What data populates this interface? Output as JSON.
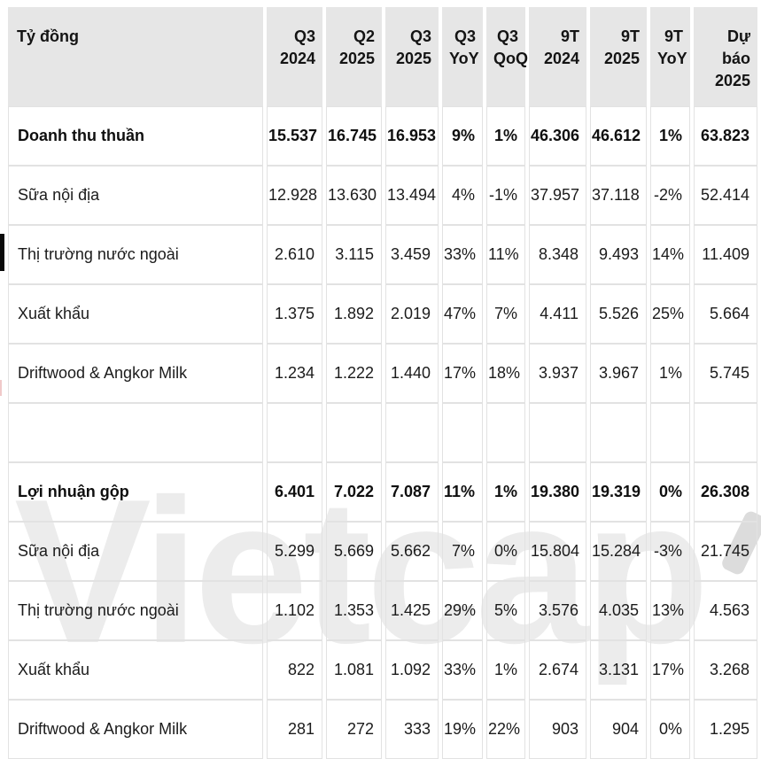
{
  "unit_label": "Tỷ đồng",
  "watermark": {
    "text": "Vietcap",
    "color": "#ececec",
    "tick_color": "#dcdcdc"
  },
  "colors": {
    "header_bg": "#e6e6e6",
    "cell_border": "#e2e2e2",
    "text": "#1b1b1b",
    "watermark": "#ececec"
  },
  "header": {
    "cols": [
      {
        "l1": "Tỷ đồng",
        "l2": ""
      },
      {
        "l1": "Q3",
        "l2": "2024"
      },
      {
        "l1": "Q2",
        "l2": "2025"
      },
      {
        "l1": "Q3",
        "l2": "2025"
      },
      {
        "l1": "Q3",
        "l2": "YoY"
      },
      {
        "l1": "Q3",
        "l2": "QoQ"
      },
      {
        "l1": "9T",
        "l2": "2024"
      },
      {
        "l1": "9T",
        "l2": "2025"
      },
      {
        "l1": "9T",
        "l2": "YoY"
      },
      {
        "l1": "Dự báo",
        "l2": "2025"
      }
    ]
  },
  "rows": [
    {
      "label": "Doanh thu thuần",
      "bold": true,
      "spacer": false,
      "cells": [
        "15.537",
        "16.745",
        "16.953",
        "9%",
        "1%",
        "46.306",
        "46.612",
        "1%",
        "63.823"
      ]
    },
    {
      "label": "Sữa nội địa",
      "bold": false,
      "spacer": false,
      "cells": [
        "12.928",
        "13.630",
        "13.494",
        "4%",
        "-1%",
        "37.957",
        "37.118",
        "-2%",
        "52.414"
      ]
    },
    {
      "label": "Thị trường nước ngoài",
      "bold": false,
      "spacer": false,
      "cells": [
        "2.610",
        "3.115",
        "3.459",
        "33%",
        "11%",
        "8.348",
        "9.493",
        "14%",
        "11.409"
      ]
    },
    {
      "label": "Xuất khẩu",
      "bold": false,
      "spacer": false,
      "cells": [
        "1.375",
        "1.892",
        "2.019",
        "47%",
        "7%",
        "4.411",
        "5.526",
        "25%",
        "5.664"
      ]
    },
    {
      "label": "Driftwood & Angkor Milk",
      "bold": false,
      "spacer": false,
      "cells": [
        "1.234",
        "1.222",
        "1.440",
        "17%",
        "18%",
        "3.937",
        "3.967",
        "1%",
        "5.745"
      ]
    },
    {
      "label": "",
      "bold": false,
      "spacer": true,
      "cells": [
        "",
        "",
        "",
        "",
        "",
        "",
        "",
        "",
        ""
      ]
    },
    {
      "label": "Lợi nhuận gộp",
      "bold": true,
      "spacer": false,
      "cells": [
        "6.401",
        "7.022",
        "7.087",
        "11%",
        "1%",
        "19.380",
        "19.319",
        "0%",
        "26.308"
      ]
    },
    {
      "label": "Sữa nội địa",
      "bold": false,
      "spacer": false,
      "cells": [
        "5.299",
        "5.669",
        "5.662",
        "7%",
        "0%",
        "15.804",
        "15.284",
        "-3%",
        "21.745"
      ]
    },
    {
      "label": "Thị trường nước ngoài",
      "bold": false,
      "spacer": false,
      "cells": [
        "1.102",
        "1.353",
        "1.425",
        "29%",
        "5%",
        "3.576",
        "4.035",
        "13%",
        "4.563"
      ]
    },
    {
      "label": "Xuất khẩu",
      "bold": false,
      "spacer": false,
      "cells": [
        "822",
        "1.081",
        "1.092",
        "33%",
        "1%",
        "2.674",
        "3.131",
        "17%",
        "3.268"
      ]
    },
    {
      "label": "Driftwood & Angkor Milk",
      "bold": false,
      "spacer": false,
      "cells": [
        "281",
        "272",
        "333",
        "19%",
        "22%",
        "903",
        "904",
        "0%",
        "1.295"
      ]
    }
  ],
  "chart_data": {
    "type": "table",
    "title": "Tỷ đồng",
    "columns": [
      "Tỷ đồng",
      "Q3 2024",
      "Q2 2025",
      "Q3 2025",
      "Q3 YoY",
      "Q3 QoQ",
      "9T 2024",
      "9T 2025",
      "9T YoY",
      "Dự báo 2025"
    ],
    "rows": [
      [
        "Doanh thu thuần",
        "15.537",
        "16.745",
        "16.953",
        "9%",
        "1%",
        "46.306",
        "46.612",
        "1%",
        "63.823"
      ],
      [
        "Sữa nội địa",
        "12.928",
        "13.630",
        "13.494",
        "4%",
        "-1%",
        "37.957",
        "37.118",
        "-2%",
        "52.414"
      ],
      [
        "Thị trường nước ngoài",
        "2.610",
        "3.115",
        "3.459",
        "33%",
        "11%",
        "8.348",
        "9.493",
        "14%",
        "11.409"
      ],
      [
        "Xuất khẩu",
        "1.375",
        "1.892",
        "2.019",
        "47%",
        "7%",
        "4.411",
        "5.526",
        "25%",
        "5.664"
      ],
      [
        "Driftwood & Angkor Milk",
        "1.234",
        "1.222",
        "1.440",
        "17%",
        "18%",
        "3.937",
        "3.967",
        "1%",
        "5.745"
      ],
      [
        "Lợi nhuận gộp",
        "6.401",
        "7.022",
        "7.087",
        "11%",
        "1%",
        "19.380",
        "19.319",
        "0%",
        "26.308"
      ],
      [
        "Sữa nội địa",
        "5.299",
        "5.669",
        "5.662",
        "7%",
        "0%",
        "15.804",
        "15.284",
        "-3%",
        "21.745"
      ],
      [
        "Thị trường nước ngoài",
        "1.102",
        "1.353",
        "1.425",
        "29%",
        "5%",
        "3.576",
        "4.035",
        "13%",
        "4.563"
      ],
      [
        "Xuất khẩu",
        "822",
        "1.081",
        "1.092",
        "33%",
        "1%",
        "2.674",
        "3.131",
        "17%",
        "3.268"
      ],
      [
        "Driftwood & Angkor Milk",
        "281",
        "272",
        "333",
        "19%",
        "22%",
        "903",
        "904",
        "0%",
        "1.295"
      ]
    ]
  }
}
